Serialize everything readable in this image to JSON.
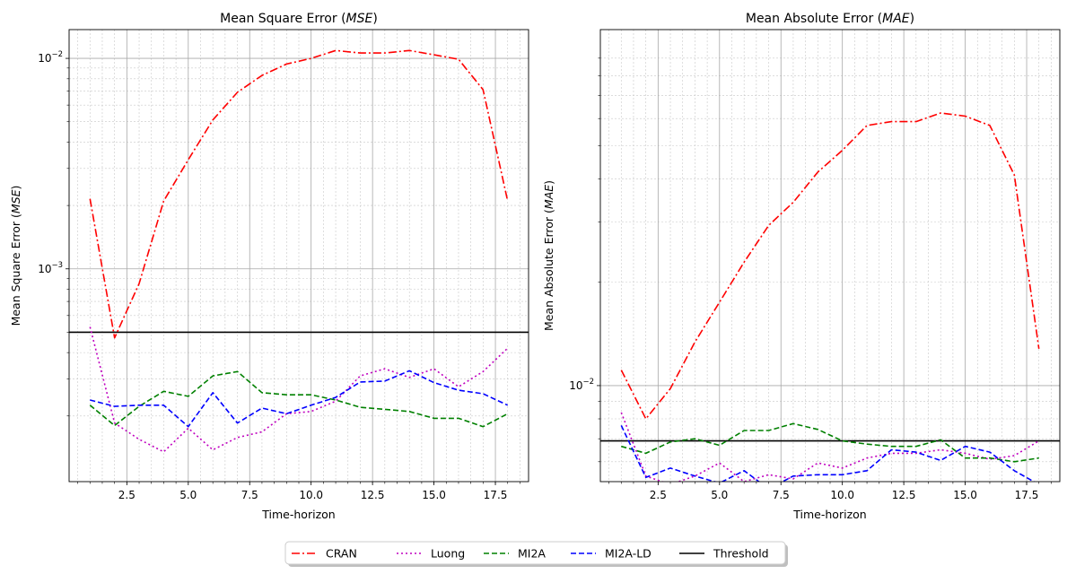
{
  "chart_data": [
    {
      "type": "line",
      "title": "Mean Square Error (MSE)",
      "title_text": "Mean Square Error (",
      "title_math": "MSE",
      "title_close": ")",
      "xlabel": "Time-horizon",
      "ylabel": "Mean Square Error (MSE)",
      "ylabel_text": "Mean Square Error (",
      "ylabel_math": "MSE",
      "ylabel_close": ")",
      "yscale": "log",
      "xlim": [
        0.15,
        18.85
      ],
      "ylim": [
        9.75e-05,
        0.0137
      ],
      "x_ticks": [
        2.5,
        5.0,
        7.5,
        10.0,
        12.5,
        15.0,
        17.5
      ],
      "x_tick_labels": [
        "2.5",
        "5.0",
        "7.5",
        "10.0",
        "12.5",
        "15.0",
        "17.5"
      ],
      "y_ticks": [
        0.001,
        0.01
      ],
      "y_tick_base": [
        "10",
        "10"
      ],
      "y_tick_exp": [
        "−3",
        "−2"
      ],
      "grid": true,
      "x": [
        1,
        2,
        3,
        4,
        5,
        6,
        7,
        8,
        9,
        10,
        11,
        12,
        13,
        14,
        15,
        16,
        17,
        18
      ],
      "threshold": 0.0005,
      "series": [
        {
          "name": "CRAN",
          "values": [
            0.00215,
            0.00047,
            0.00085,
            0.0021,
            0.0033,
            0.0051,
            0.0069,
            0.0083,
            0.0094,
            0.01,
            0.0109,
            0.0106,
            0.0106,
            0.0109,
            0.0104,
            0.0099,
            0.0071,
            0.0021
          ]
        },
        {
          "name": "Luong",
          "values": [
            0.00053,
            0.000185,
            0.000155,
            0.000135,
            0.000175,
            0.000138,
            0.000158,
            0.000168,
            0.000205,
            0.00021,
            0.000235,
            0.00031,
            0.000335,
            0.000305,
            0.000335,
            0.000275,
            0.000325,
            0.00042
          ]
        },
        {
          "name": "MI2A",
          "values": [
            0.000225,
            0.00018,
            0.000222,
            0.000262,
            0.000248,
            0.00031,
            0.000325,
            0.000258,
            0.000252,
            0.000252,
            0.000238,
            0.00022,
            0.000215,
            0.00021,
            0.000195,
            0.000195,
            0.000178,
            0.000205
          ]
        },
        {
          "name": "MI2A-LD",
          "values": [
            0.000238,
            0.000222,
            0.000225,
            0.000225,
            0.000178,
            0.000258,
            0.000185,
            0.000218,
            0.000205,
            0.000225,
            0.000245,
            0.00029,
            0.000293,
            0.000328,
            0.000288,
            0.000265,
            0.000255,
            0.000225
          ]
        }
      ]
    },
    {
      "type": "line",
      "title": "Mean Absolute Error (MAE)",
      "title_text": "Mean Absolute Error (",
      "title_math": "MAE",
      "title_close": ")",
      "xlabel": "Time-horizon",
      "ylabel": "Mean Absolute Error (MAE)",
      "ylabel_text": "Mean Absolute Error  (",
      "ylabel_math": "MAE",
      "ylabel_close": ")",
      "yscale": "log",
      "xlim": [
        0.15,
        18.85
      ],
      "ylim": [
        0.00525,
        0.109
      ],
      "x_ticks": [
        2.5,
        5.0,
        7.5,
        10.0,
        12.5,
        15.0,
        17.5
      ],
      "x_tick_labels": [
        "2.5",
        "5.0",
        "7.5",
        "10.0",
        "12.5",
        "15.0",
        "17.5"
      ],
      "y_ticks": [
        0.01
      ],
      "y_tick_base": [
        "10"
      ],
      "y_tick_exp": [
        "−2"
      ],
      "grid": true,
      "x": [
        1,
        2,
        3,
        4,
        5,
        6,
        7,
        8,
        9,
        10,
        11,
        12,
        13,
        14,
        15,
        16,
        17,
        18
      ],
      "threshold": 0.0069,
      "series": [
        {
          "name": "CRAN",
          "values": [
            0.0111,
            0.008,
            0.0098,
            0.0134,
            0.0175,
            0.0229,
            0.0293,
            0.0342,
            0.0419,
            0.0485,
            0.0573,
            0.0588,
            0.0588,
            0.0623,
            0.061,
            0.0573,
            0.0411,
            0.0128
          ]
        },
        {
          "name": "Luong",
          "values": [
            0.00835,
            0.00545,
            0.00515,
            0.00545,
            0.00595,
            0.00525,
            0.0055,
            0.00535,
            0.00595,
            0.00575,
            0.00615,
            0.00635,
            0.00635,
            0.0065,
            0.00635,
            0.0061,
            0.00625,
            0.0069
          ]
        },
        {
          "name": "MI2A",
          "values": [
            0.00665,
            0.00635,
            0.00685,
            0.007,
            0.0067,
            0.0074,
            0.0074,
            0.00775,
            0.00745,
            0.0069,
            0.00675,
            0.00665,
            0.00665,
            0.00695,
            0.00615,
            0.00615,
            0.006,
            0.00615
          ]
        },
        {
          "name": "MI2A-LD",
          "values": [
            0.00765,
            0.0054,
            0.00575,
            0.00545,
            0.0052,
            0.00565,
            0.005,
            0.00545,
            0.0055,
            0.0055,
            0.00565,
            0.0065,
            0.0064,
            0.00605,
            0.00665,
            0.0064,
            0.00565,
            0.00515
          ]
        }
      ]
    }
  ],
  "legend": {
    "placement": "bottom-center",
    "entries": [
      {
        "label": "CRAN",
        "color": "#ff0000",
        "style": "dashdot"
      },
      {
        "label": "Luong",
        "color": "#bf00bf",
        "style": "dotted"
      },
      {
        "label": "MI2A",
        "color": "#008000",
        "style": "dashed"
      },
      {
        "label": "MI2A-LD",
        "color": "#0000ff",
        "style": "dashed"
      },
      {
        "label": "Threshold",
        "color": "#000000",
        "style": "solid"
      }
    ]
  },
  "colors": {
    "CRAN": "#ff0000",
    "Luong": "#bf00bf",
    "MI2A": "#008000",
    "MI2A-LD": "#0000ff",
    "Threshold": "#000000"
  }
}
